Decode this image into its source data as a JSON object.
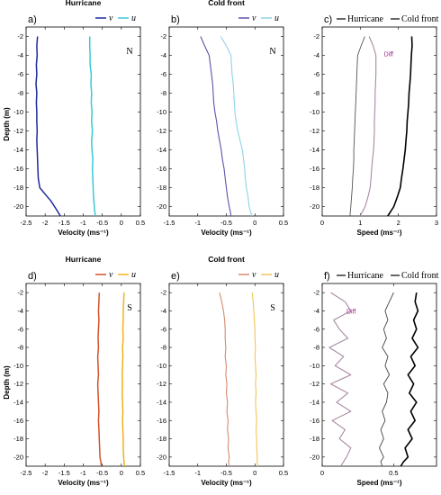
{
  "page": {
    "ylabel_top": "Depth (m)",
    "ylabel_bottom": "Depth (m)"
  },
  "chart_data": [
    {
      "id": "a",
      "panel_label": "a)",
      "title": "Hurricane",
      "type": "line",
      "xlabel": "Velocity (ms⁻¹)",
      "xlim": [
        -2.5,
        0.5
      ],
      "ylim": [
        -21,
        -1
      ],
      "xticks": [
        -2.5,
        -2,
        -1.5,
        -1,
        -0.5,
        0,
        0.5
      ],
      "xtick_labels": [
        "-2.5",
        "-2",
        "-1.5",
        "-1",
        "-0.5",
        "0",
        "0.5"
      ],
      "yticks": [
        -2,
        -4,
        -6,
        -8,
        -10,
        -12,
        -14,
        -16,
        -18,
        -20
      ],
      "annotation": "N",
      "legend": {
        "position": "top-right",
        "entries": [
          {
            "label": "v",
            "color": "#1f2a9c"
          },
          {
            "label": "u",
            "color": "#3cc8d8"
          }
        ]
      },
      "series": [
        {
          "name": "v",
          "color": "#1f2a9c",
          "lw": 1.5,
          "x": [
            -2.2,
            -2.22,
            -2.21,
            -2.23,
            -2.22,
            -2.24,
            -2.22,
            -2.23,
            -2.22,
            -2.22,
            -2.21,
            -2.22,
            -2.21,
            -2.2,
            -2.19,
            -2.18,
            -2.14,
            -2.0,
            -1.85,
            -1.72,
            -1.6
          ],
          "y": [
            -2,
            -3,
            -4,
            -5,
            -6,
            -7,
            -8,
            -9,
            -10,
            -11,
            -12,
            -13,
            -14,
            -15,
            -16,
            -17,
            -18,
            -18.7,
            -19.4,
            -20.2,
            -21
          ]
        },
        {
          "name": "u",
          "color": "#3cc8d8",
          "lw": 1.5,
          "x": [
            -0.83,
            -0.83,
            -0.82,
            -0.82,
            -0.79,
            -0.8,
            -0.78,
            -0.79,
            -0.77,
            -0.78,
            -0.76,
            -0.78,
            -0.77,
            -0.75,
            -0.76,
            -0.75,
            -0.74,
            -0.73,
            -0.71,
            -0.7,
            -0.68
          ],
          "y": [
            -2,
            -3,
            -4,
            -5,
            -6,
            -7,
            -8,
            -9,
            -10,
            -11,
            -12,
            -13,
            -14,
            -15,
            -16,
            -17,
            -18,
            -19,
            -20,
            -20.5,
            -21
          ]
        }
      ]
    },
    {
      "id": "b",
      "panel_label": "b)",
      "title": "Cold front",
      "type": "line",
      "xlabel": "Velocity (ms⁻¹)",
      "xlim": [
        -1.5,
        0.5
      ],
      "ylim": [
        -21,
        -1
      ],
      "xticks": [
        -1.5,
        -1,
        -0.5,
        0,
        0.5
      ],
      "xtick_labels": [
        "-1.5",
        "-1",
        "-0.5",
        "0",
        "0.5"
      ],
      "yticks": [
        -2,
        -4,
        -6,
        -8,
        -10,
        -12,
        -14,
        -16,
        -18,
        -20
      ],
      "annotation": "N",
      "legend": {
        "position": "top-right",
        "entries": [
          {
            "label": "v",
            "color": "#5b56a8"
          },
          {
            "label": "u",
            "color": "#8fd3e8"
          }
        ]
      },
      "series": [
        {
          "name": "v",
          "color": "#5b56a8",
          "lw": 1.1,
          "x": [
            -0.95,
            -0.88,
            -0.8,
            -0.78,
            -0.76,
            -0.74,
            -0.73,
            -0.72,
            -0.7,
            -0.67,
            -0.65,
            -0.62,
            -0.59,
            -0.57,
            -0.54,
            -0.52,
            -0.5,
            -0.48,
            -0.45,
            -0.43,
            -0.42
          ],
          "y": [
            -2,
            -3,
            -4,
            -5,
            -6,
            -7,
            -8,
            -9,
            -10,
            -11,
            -12,
            -13,
            -14,
            -15,
            -16,
            -17,
            -18,
            -19,
            -20,
            -20.5,
            -21
          ]
        },
        {
          "name": "u",
          "color": "#8fd3e8",
          "lw": 1.1,
          "x": [
            -0.6,
            -0.5,
            -0.42,
            -0.41,
            -0.4,
            -0.38,
            -0.37,
            -0.36,
            -0.35,
            -0.33,
            -0.3,
            -0.26,
            -0.22,
            -0.2,
            -0.18,
            -0.17,
            -0.15,
            -0.12,
            -0.1,
            -0.08,
            -0.05
          ],
          "y": [
            -2,
            -3,
            -4,
            -5,
            -6,
            -7,
            -8,
            -9,
            -10,
            -11,
            -12,
            -13,
            -14,
            -15,
            -16,
            -17,
            -18,
            -19,
            -20,
            -20.5,
            -21
          ]
        }
      ]
    },
    {
      "id": "c",
      "panel_label": "c)",
      "title": "",
      "type": "line",
      "xlabel": "Speed (ms⁻¹)",
      "xlim": [
        0,
        3
      ],
      "ylim": [
        -21,
        -1
      ],
      "xticks": [
        0,
        1,
        2,
        3
      ],
      "xtick_labels": [
        "0",
        "1",
        "2",
        "3"
      ],
      "yticks": [
        -2,
        -4,
        -6,
        -8,
        -10,
        -12,
        -14,
        -16,
        -18,
        -20
      ],
      "annotation": "",
      "legend": {
        "position": "top",
        "entries": [
          {
            "label": "Hurricane",
            "color": "#000000"
          },
          {
            "label": "Cold front",
            "color": "#000000"
          }
        ]
      },
      "diff_label": "Diff",
      "diff_label_color": "#9b2a8a",
      "diff_label_pos": [
        1.62,
        -4.1
      ],
      "series": [
        {
          "name": "Hurricane",
          "color": "#000000",
          "lw": 1.6,
          "x": [
            2.35,
            2.36,
            2.34,
            2.33,
            2.32,
            2.3,
            2.28,
            2.27,
            2.25,
            2.23,
            2.22,
            2.2,
            2.18,
            2.15,
            2.12,
            2.08,
            2.05,
            1.97,
            1.88,
            1.8,
            1.72
          ],
          "y": [
            -2,
            -3,
            -4,
            -5,
            -6,
            -7,
            -8,
            -9,
            -10,
            -11,
            -12,
            -13,
            -14,
            -15,
            -16,
            -17,
            -18,
            -19,
            -20,
            -20.5,
            -21
          ]
        },
        {
          "name": "Cold front",
          "color": "#555555",
          "lw": 0.9,
          "x": [
            1.12,
            1.02,
            0.93,
            0.92,
            0.91,
            0.9,
            0.89,
            0.88,
            0.87,
            0.86,
            0.85,
            0.84,
            0.83,
            0.83,
            0.82,
            0.8,
            0.79,
            0.77,
            0.75,
            0.74,
            0.73
          ],
          "y": [
            -2,
            -3,
            -4,
            -5,
            -6,
            -7,
            -8,
            -9,
            -10,
            -11,
            -12,
            -13,
            -14,
            -15,
            -16,
            -17,
            -18,
            -19,
            -20,
            -20.5,
            -21
          ]
        },
        {
          "name": "Diff",
          "color": "#a78aa3",
          "lw": 1.1,
          "x": [
            1.23,
            1.34,
            1.41,
            1.41,
            1.41,
            1.4,
            1.39,
            1.39,
            1.38,
            1.37,
            1.37,
            1.36,
            1.35,
            1.32,
            1.3,
            1.28,
            1.26,
            1.2,
            1.13,
            1.06,
            0.99
          ],
          "y": [
            -2,
            -3,
            -4,
            -5,
            -6,
            -7,
            -8,
            -9,
            -10,
            -11,
            -12,
            -13,
            -14,
            -15,
            -16,
            -17,
            -18,
            -19,
            -20,
            -20.5,
            -21
          ]
        }
      ]
    },
    {
      "id": "d",
      "panel_label": "d)",
      "title": "Hurricane",
      "type": "line",
      "xlabel": "Velocity (ms⁻¹)",
      "xlim": [
        -2.5,
        0.5
      ],
      "ylim": [
        -21,
        -1
      ],
      "xticks": [
        -2.5,
        -2,
        -1.5,
        -1,
        -0.5,
        0,
        0.5
      ],
      "xtick_labels": [
        "-2.5",
        "-2",
        "-1.5",
        "-1",
        "-0.5",
        "0",
        "0.5"
      ],
      "yticks": [
        -2,
        -4,
        -6,
        -8,
        -10,
        -12,
        -14,
        -16,
        -18,
        -20
      ],
      "annotation": "S",
      "legend": {
        "position": "top-right",
        "entries": [
          {
            "label": "v",
            "color": "#d2532a"
          },
          {
            "label": "u",
            "color": "#f2b21a"
          }
        ]
      },
      "series": [
        {
          "name": "v",
          "color": "#d2532a",
          "lw": 1.5,
          "x": [
            -0.58,
            -0.59,
            -0.6,
            -0.59,
            -0.6,
            -0.61,
            -0.6,
            -0.62,
            -0.61,
            -0.6,
            -0.62,
            -0.61,
            -0.6,
            -0.59,
            -0.6,
            -0.59,
            -0.58,
            -0.57,
            -0.56,
            -0.54,
            -0.52
          ],
          "y": [
            -2,
            -3,
            -4,
            -5,
            -6,
            -7,
            -8,
            -9,
            -10,
            -11,
            -12,
            -13,
            -14,
            -15,
            -16,
            -17,
            -18,
            -19,
            -20,
            -20.5,
            -21
          ]
        },
        {
          "name": "u",
          "color": "#f2b21a",
          "lw": 1.5,
          "x": [
            0.07,
            0.06,
            0.05,
            0.05,
            0.04,
            0.05,
            0.03,
            0.04,
            0.03,
            0.02,
            0.03,
            0.02,
            0.03,
            0.04,
            0.03,
            0.04,
            0.05,
            0.05,
            0.06,
            0.07,
            0.08
          ],
          "y": [
            -2,
            -3,
            -4,
            -5,
            -6,
            -7,
            -8,
            -9,
            -10,
            -11,
            -12,
            -13,
            -14,
            -15,
            -16,
            -17,
            -18,
            -19,
            -20,
            -20.5,
            -21
          ]
        }
      ]
    },
    {
      "id": "e",
      "panel_label": "e)",
      "title": "Cold front",
      "type": "line",
      "xlabel": "Velocity (ms⁻¹)",
      "xlim": [
        -1.5,
        0.5
      ],
      "ylim": [
        -21,
        -1
      ],
      "xticks": [
        -1.5,
        -1,
        -0.5,
        0,
        0.5
      ],
      "xtick_labels": [
        "-1.5",
        "-1",
        "-0.5",
        "0",
        "0.5"
      ],
      "yticks": [
        -2,
        -4,
        -6,
        -8,
        -10,
        -12,
        -14,
        -16,
        -18,
        -20
      ],
      "annotation": "S",
      "legend": {
        "position": "top-right",
        "entries": [
          {
            "label": "v",
            "color": "#d68a6e"
          },
          {
            "label": "u",
            "color": "#f2c45a"
          }
        ]
      },
      "series": [
        {
          "name": "v",
          "color": "#d68a6e",
          "lw": 1.1,
          "x": [
            -0.62,
            -0.58,
            -0.55,
            -0.53,
            -0.52,
            -0.52,
            -0.51,
            -0.52,
            -0.5,
            -0.51,
            -0.49,
            -0.5,
            -0.48,
            -0.49,
            -0.47,
            -0.48,
            -0.46,
            -0.47,
            -0.45,
            -0.46,
            -0.45
          ],
          "y": [
            -2,
            -3,
            -4,
            -5,
            -6,
            -7,
            -8,
            -9,
            -10,
            -11,
            -12,
            -13,
            -14,
            -15,
            -16,
            -17,
            -18,
            -19,
            -20,
            -20.5,
            -21
          ]
        },
        {
          "name": "u",
          "color": "#f2c45a",
          "lw": 1.1,
          "x": [
            -0.05,
            -0.03,
            -0.02,
            -0.01,
            0.0,
            0.0,
            0.01,
            0.0,
            0.01,
            0.02,
            0.01,
            0.02,
            0.01,
            0.02,
            0.03,
            0.02,
            0.03,
            0.03,
            0.04,
            0.04,
            0.05
          ],
          "y": [
            -2,
            -3,
            -4,
            -5,
            -6,
            -7,
            -8,
            -9,
            -10,
            -11,
            -12,
            -13,
            -14,
            -15,
            -16,
            -17,
            -18,
            -19,
            -20,
            -20.5,
            -21
          ]
        }
      ]
    },
    {
      "id": "f",
      "panel_label": "f)",
      "title": "",
      "type": "line",
      "xlabel": "Speed (ms⁻¹)",
      "xlim": [
        0,
        0.8
      ],
      "ylim": [
        -21,
        -1
      ],
      "xticks": [
        0,
        0.5
      ],
      "xtick_labels": [
        "0",
        "0.5"
      ],
      "yticks": [
        -2,
        -4,
        -6,
        -8,
        -10,
        -12,
        -14,
        -16,
        -18,
        -20
      ],
      "annotation": "",
      "legend": {
        "position": "top",
        "entries": [
          {
            "label": "Hurricane",
            "color": "#000000"
          },
          {
            "label": "Cold front",
            "color": "#000000"
          }
        ]
      },
      "diff_label": "Diff",
      "diff_label_color": "#9b2a8a",
      "diff_label_pos": [
        0.17,
        -4.3
      ],
      "series": [
        {
          "name": "Hurricane",
          "color": "#000000",
          "lw": 1.6,
          "x": [
            0.66,
            0.65,
            0.67,
            0.64,
            0.66,
            0.63,
            0.67,
            0.62,
            0.65,
            0.6,
            0.64,
            0.61,
            0.66,
            0.62,
            0.65,
            0.6,
            0.63,
            0.58,
            0.6,
            0.57,
            0.55
          ],
          "y": [
            -2,
            -3,
            -4,
            -5,
            -6,
            -7,
            -8,
            -9,
            -10,
            -11,
            -12,
            -13,
            -14,
            -15,
            -16,
            -17,
            -18,
            -19,
            -20,
            -20.5,
            -21
          ]
        },
        {
          "name": "Cold front",
          "color": "#444444",
          "lw": 0.9,
          "x": [
            0.5,
            0.47,
            0.44,
            0.46,
            0.43,
            0.45,
            0.42,
            0.46,
            0.44,
            0.47,
            0.43,
            0.46,
            0.45,
            0.42,
            0.44,
            0.41,
            0.43,
            0.4,
            0.43,
            0.41,
            0.42
          ],
          "y": [
            -2,
            -3,
            -4,
            -5,
            -6,
            -7,
            -8,
            -9,
            -10,
            -11,
            -12,
            -13,
            -14,
            -15,
            -16,
            -17,
            -18,
            -19,
            -20,
            -20.5,
            -21
          ]
        },
        {
          "name": "Diff",
          "color": "#a78aa3",
          "lw": 1.1,
          "x": [
            0.06,
            0.16,
            0.2,
            0.08,
            0.12,
            0.18,
            0.05,
            0.15,
            0.09,
            0.2,
            0.06,
            0.18,
            0.1,
            0.2,
            0.07,
            0.16,
            0.12,
            0.2,
            0.17,
            0.15,
            0.13
          ],
          "y": [
            -2,
            -3,
            -4,
            -5,
            -6,
            -7,
            -8,
            -9,
            -10,
            -11,
            -12,
            -13,
            -14,
            -15,
            -16,
            -17,
            -18,
            -19,
            -20,
            -20.5,
            -21
          ]
        }
      ]
    }
  ]
}
